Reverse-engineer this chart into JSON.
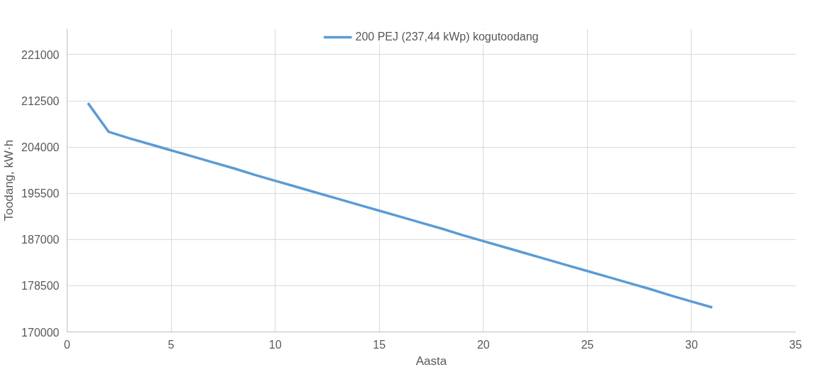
{
  "chart_data": {
    "type": "line",
    "xlabel": "Aasta",
    "ylabel": "Toodang, kW·h",
    "xlim": [
      0,
      35
    ],
    "xticks": [
      0,
      5,
      10,
      15,
      20,
      25,
      30,
      35
    ],
    "ylim": [
      170000,
      225760
    ],
    "yticks": [
      170000,
      178500,
      187000,
      195500,
      204000,
      212500,
      221000
    ],
    "grid": true,
    "legend": "top",
    "marker": "none",
    "line_style": "solid",
    "series": [
      {
        "name": "200 PEJ (237,44 kWp) kogutoodang",
        "color": "#5b9bd5",
        "x": [
          1,
          2,
          3,
          4,
          5,
          6,
          7,
          8,
          9,
          10,
          11,
          12,
          13,
          14,
          15,
          16,
          17,
          18,
          19,
          20,
          21,
          22,
          23,
          24,
          25,
          26,
          27,
          28,
          29,
          30,
          31
        ],
        "values": [
          212100,
          206800,
          205600,
          204500,
          203400,
          202300,
          201200,
          200100,
          198900,
          197800,
          196700,
          195600,
          194500,
          193400,
          192300,
          191200,
          190100,
          189000,
          187800,
          186700,
          185600,
          184500,
          183400,
          182300,
          181200,
          180100,
          179000,
          177900,
          176700,
          175600,
          174500
        ]
      }
    ]
  }
}
